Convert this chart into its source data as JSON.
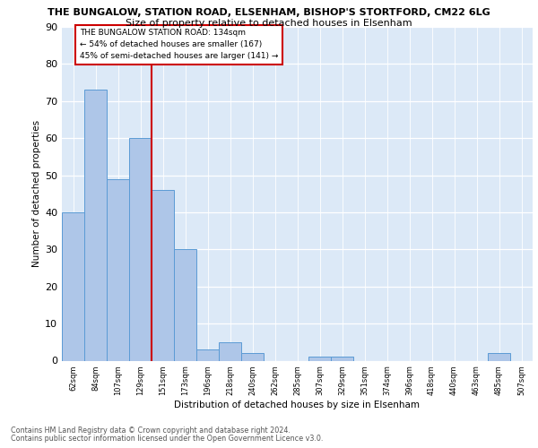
{
  "title_line1": "THE BUNGALOW, STATION ROAD, ELSENHAM, BISHOP'S STORTFORD, CM22 6LG",
  "title_line2": "Size of property relative to detached houses in Elsenham",
  "xlabel": "Distribution of detached houses by size in Elsenham",
  "ylabel": "Number of detached properties",
  "footer_line1": "Contains HM Land Registry data © Crown copyright and database right 2024.",
  "footer_line2": "Contains public sector information licensed under the Open Government Licence v3.0.",
  "annotation_line1": "THE BUNGALOW STATION ROAD: 134sqm",
  "annotation_line2": "← 54% of detached houses are smaller (167)",
  "annotation_line3": "45% of semi-detached houses are larger (141) →",
  "bar_labels": [
    "62sqm",
    "84sqm",
    "107sqm",
    "129sqm",
    "151sqm",
    "173sqm",
    "196sqm",
    "218sqm",
    "240sqm",
    "262sqm",
    "285sqm",
    "307sqm",
    "329sqm",
    "351sqm",
    "374sqm",
    "396sqm",
    "418sqm",
    "440sqm",
    "463sqm",
    "485sqm",
    "507sqm"
  ],
  "bar_values": [
    40,
    73,
    49,
    60,
    46,
    30,
    3,
    5,
    2,
    0,
    0,
    1,
    1,
    0,
    0,
    0,
    0,
    0,
    0,
    2,
    0
  ],
  "bar_color": "#aec6e8",
  "bar_edge_color": "#5b9bd5",
  "vline_x": 3.5,
  "vline_color": "#cc0000",
  "background_color": "#dce9f7",
  "ylim": [
    0,
    90
  ],
  "yticks": [
    0,
    10,
    20,
    30,
    40,
    50,
    60,
    70,
    80,
    90
  ]
}
